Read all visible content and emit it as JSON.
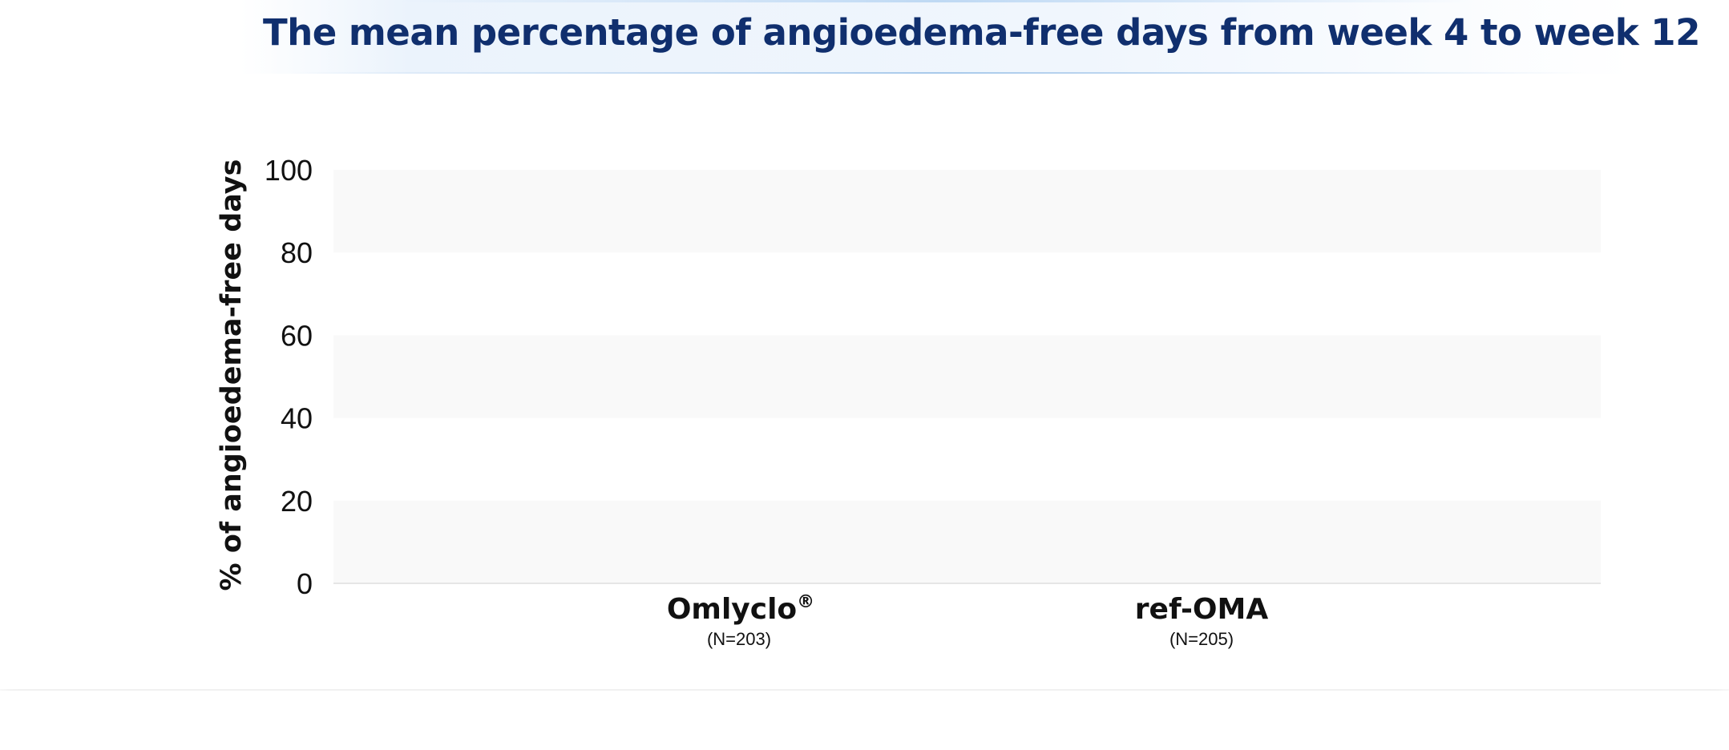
{
  "chart_data": {
    "type": "bar",
    "title": "The mean percentage of angioedema-free days from week 4 to week 12",
    "ylabel": "% of angioedema-free days",
    "xlabel": "",
    "ylim": [
      0,
      100
    ],
    "yticks": [
      "0",
      "20",
      "40",
      "60",
      "80",
      "100"
    ],
    "yticks_values": [
      0,
      20,
      40,
      60,
      80,
      100
    ],
    "grid": "alternating horizontal bands",
    "categories": [
      {
        "name": "Omlyclo",
        "superscript": "®",
        "n_label": "(N=203)"
      },
      {
        "name": "ref-OMA",
        "superscript": "",
        "n_label": "(N=205)"
      }
    ],
    "values": [
      null,
      null
    ],
    "colors": {
      "band": "#f9f9f9",
      "axis": "#e6e6e6",
      "title": "#102f6e",
      "text": "#111111"
    }
  }
}
